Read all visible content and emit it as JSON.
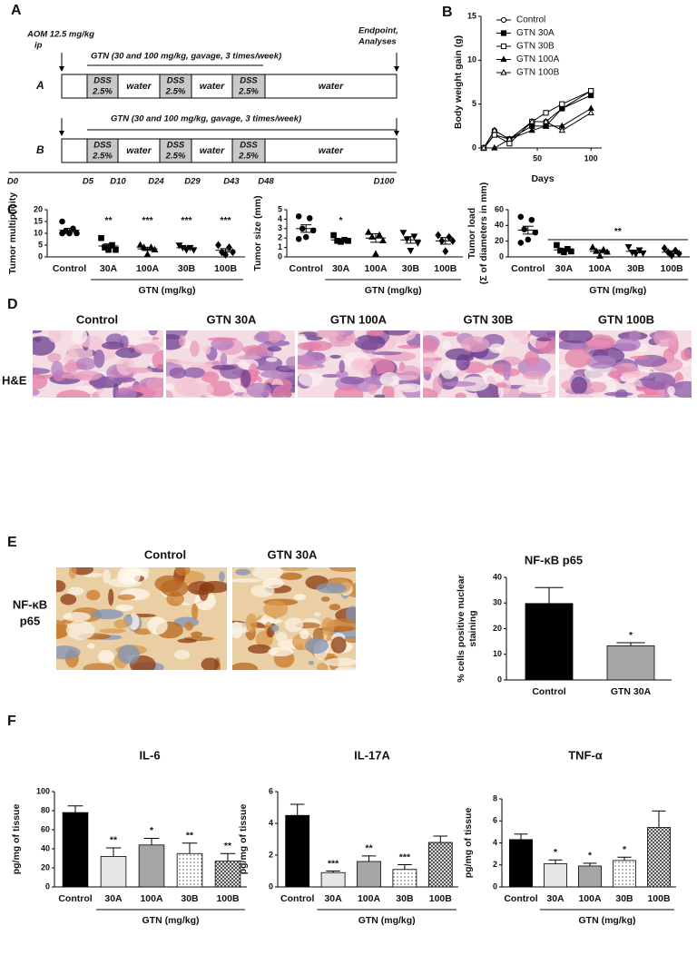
{
  "panels": [
    "A",
    "B",
    "C",
    "D",
    "E",
    "F"
  ],
  "timeline": {
    "aom": [
      "AOM 12.5 mg/kg",
      "ip"
    ],
    "endpoint": [
      "Endpoint,",
      "Analyses"
    ],
    "rows": [
      {
        "label": "A",
        "treatment": "GTN (30 and 100 mg/kg, gavage, 3 times/week)",
        "segments": [
          [
            "DSS",
            "2.5%"
          ],
          [
            "water"
          ],
          [
            "DSS",
            "2.5%"
          ],
          [
            "water"
          ],
          [
            "DSS",
            "2.5%"
          ],
          [
            "water"
          ]
        ]
      },
      {
        "label": "B",
        "treatment": "GTN (30 and 100 mg/kg, gavage, 3 times/week)",
        "segments": [
          [
            "DSS",
            "2.5%"
          ],
          [
            "water"
          ],
          [
            "DSS",
            "2.5%"
          ],
          [
            "water"
          ],
          [
            "DSS",
            "2.5%"
          ],
          [
            "water"
          ]
        ]
      }
    ],
    "days": [
      "D0",
      "D5",
      "D10",
      "D24",
      "D29",
      "D43",
      "D48",
      "D100"
    ]
  },
  "histology": {
    "stain": "H&E",
    "groups": [
      "Control",
      "GTN 30A",
      "GTN 100A",
      "GTN 30B",
      "GTN 100B"
    ]
  },
  "ihc": {
    "marker": [
      "NF-κB",
      "p65"
    ],
    "groups": [
      "Control",
      "GTN 30A"
    ]
  },
  "chart_data": [
    {
      "type": "line",
      "ylabel": "Body weight gain (g)",
      "xlabel": "Days",
      "x": [
        0,
        10,
        24,
        45,
        58,
        73,
        100
      ],
      "xlim": [
        0,
        110
      ],
      "xticks": [
        50,
        100
      ],
      "ylim": [
        0,
        15
      ],
      "yticks": [
        0,
        5,
        10,
        15
      ],
      "legend": "top-left",
      "series": [
        {
          "name": "Control",
          "marker": "circle-open",
          "color": "#000000",
          "values": [
            0,
            2,
            1,
            3,
            3,
            4.5,
            6.5
          ]
        },
        {
          "name": "GTN 30A",
          "marker": "square",
          "color": "#000000",
          "values": [
            0,
            1.5,
            1,
            2.5,
            2.5,
            4.5,
            6
          ]
        },
        {
          "name": "GTN 30B",
          "marker": "square-open",
          "color": "#000000",
          "values": [
            0,
            1.5,
            0.5,
            3,
            4,
            5,
            6.5
          ]
        },
        {
          "name": "GTN 100A",
          "marker": "triangle",
          "color": "#000000",
          "values": [
            0,
            0,
            1,
            2,
            2.5,
            2.5,
            4.5
          ]
        },
        {
          "name": "GTN 100B",
          "marker": "triangle-open",
          "color": "#000000",
          "values": [
            0,
            2,
            1,
            3,
            3,
            2,
            4
          ]
        }
      ]
    },
    {
      "type": "dotplot",
      "ylabel": "Tumor multiplicity",
      "categories": [
        "Control",
        "30A",
        "100A",
        "30B",
        "100B"
      ],
      "group_label": "GTN (mg/kg)",
      "markers": [
        "circle",
        "square",
        "triangle",
        "triangle-down",
        "diamond"
      ],
      "color": "#000000",
      "points": [
        [
          15,
          12,
          11,
          10,
          10,
          10
        ],
        [
          8,
          5,
          4,
          3,
          3
        ],
        [
          5,
          4,
          4,
          3,
          1
        ],
        [
          5,
          4,
          4,
          3,
          3
        ],
        [
          5,
          4,
          2,
          2,
          1
        ]
      ],
      "means": [
        11.3,
        4.6,
        3.4,
        3.9,
        2.8
      ],
      "sem": [
        0.8,
        0.9,
        0.7,
        0.4,
        0.7
      ],
      "significance": [
        null,
        "**",
        "***",
        "***",
        "***"
      ],
      "ylim": [
        0,
        20
      ],
      "yticks": [
        0,
        5,
        10,
        15,
        20
      ]
    },
    {
      "type": "dotplot",
      "ylabel": "Tumor size (mm)",
      "categories": [
        "Control",
        "30A",
        "100A",
        "30B",
        "100B"
      ],
      "group_label": "GTN (mg/kg)",
      "markers": [
        "circle",
        "square",
        "triangle",
        "triangle-down",
        "diamond"
      ],
      "color": "#000000",
      "points": [
        [
          4.3,
          4.1,
          3.0,
          2.8,
          2.1,
          1.9
        ],
        [
          2.3,
          1.8,
          1.7,
          1.7,
          1.6
        ],
        [
          2.6,
          2.3,
          2.1,
          1.7,
          0.3
        ],
        [
          2.6,
          2.2,
          1.9,
          1.5,
          0.7
        ],
        [
          2.3,
          2.1,
          1.7,
          1.7,
          0.6
        ]
      ],
      "means": [
        3.0,
        1.8,
        2.0,
        1.8,
        1.7
      ],
      "sem": [
        0.4,
        0.12,
        0.45,
        0.35,
        0.35
      ],
      "significance": [
        null,
        "*",
        null,
        null,
        null
      ],
      "ylim": [
        0,
        5
      ],
      "yticks": [
        0,
        1,
        2,
        3,
        4,
        5
      ]
    },
    {
      "type": "dotplot",
      "ylabel": [
        "Tumor load",
        "(Σ of diameters in mm)"
      ],
      "categories": [
        "Control",
        "30A",
        "100A",
        "30B",
        "100B"
      ],
      "group_label": "GTN (mg/kg)",
      "markers": [
        "circle",
        "square",
        "triangle",
        "triangle-down",
        "diamond"
      ],
      "color": "#000000",
      "points": [
        [
          51,
          47,
          35,
          31,
          22,
          18
        ],
        [
          15,
          10,
          8,
          7,
          6
        ],
        [
          12,
          9,
          7,
          6,
          1
        ],
        [
          13,
          9,
          6,
          5,
          4
        ],
        [
          11,
          8,
          6,
          4,
          2
        ]
      ],
      "means": [
        34,
        9,
        7,
        7,
        6
      ],
      "sem": [
        5,
        1.7,
        2,
        1.7,
        1.8
      ],
      "annotation": "**",
      "ylim": [
        0,
        60
      ],
      "yticks": [
        0,
        20,
        40,
        60
      ]
    },
    {
      "type": "bar",
      "title": "NF-κB p65",
      "ylabel": [
        "% cells positive  nuclear",
        "staining"
      ],
      "categories": [
        "Control",
        "GTN 30A"
      ],
      "values": [
        29.8,
        13.3
      ],
      "errors": [
        6.2,
        1.2
      ],
      "fills": [
        "#000000",
        "#a6a6a6"
      ],
      "significance": [
        null,
        "*"
      ],
      "ylim": [
        0,
        40
      ],
      "yticks": [
        0,
        10,
        20,
        30,
        40
      ]
    },
    {
      "type": "bar",
      "title": "IL-6",
      "ylabel": "pg/mg of tissue",
      "categories": [
        "Control",
        "30A",
        "100A",
        "30B",
        "100B"
      ],
      "group_label": "GTN (mg/kg)",
      "values": [
        78,
        32,
        44,
        35,
        27
      ],
      "errors": [
        7,
        9,
        7,
        11,
        8
      ],
      "fills": [
        "#000000",
        "#e6e6e6",
        "#a6a6a6",
        "dotted",
        "crosshatch"
      ],
      "significance": [
        null,
        "**",
        "*",
        "**",
        "**"
      ],
      "ylim": [
        0,
        100
      ],
      "yticks": [
        0,
        20,
        40,
        60,
        80,
        100
      ]
    },
    {
      "type": "bar",
      "title": "IL-17A",
      "ylabel": "pg/mg of tissue",
      "categories": [
        "Control",
        "30A",
        "100A",
        "30B",
        "100B"
      ],
      "group_label": "GTN (mg/kg)",
      "values": [
        4.5,
        0.9,
        1.6,
        1.1,
        2.8
      ],
      "errors": [
        0.7,
        0.1,
        0.35,
        0.3,
        0.4
      ],
      "fills": [
        "#000000",
        "#e6e6e6",
        "#a6a6a6",
        "dotted",
        "crosshatch"
      ],
      "significance": [
        null,
        "***",
        "**",
        "***",
        null
      ],
      "ylim": [
        0,
        6
      ],
      "yticks": [
        0,
        2,
        4,
        6
      ]
    },
    {
      "type": "bar",
      "title": "TNF-α",
      "ylabel": "pg/mg of tissue",
      "categories": [
        "Control",
        "30A",
        "100A",
        "30B",
        "100B"
      ],
      "group_label": "GTN (mg/kg)",
      "values": [
        4.3,
        2.1,
        1.9,
        2.4,
        5.4
      ],
      "errors": [
        0.5,
        0.35,
        0.25,
        0.3,
        1.5
      ],
      "fills": [
        "#000000",
        "#e6e6e6",
        "#a6a6a6",
        "dotted",
        "crosshatch"
      ],
      "significance": [
        null,
        "*",
        "*",
        "*",
        null
      ],
      "ylim": [
        0,
        8
      ],
      "yticks": [
        0,
        2,
        4,
        6,
        8
      ]
    }
  ]
}
